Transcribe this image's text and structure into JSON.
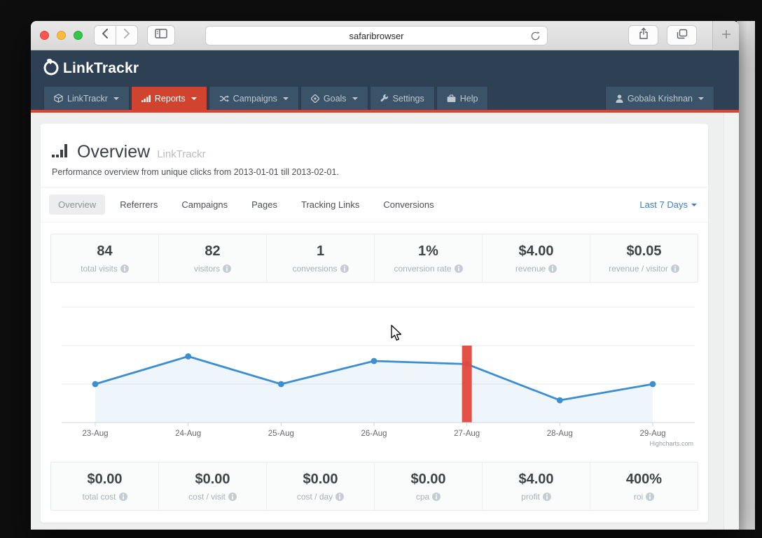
{
  "browser": {
    "url_text": "safaribrowser",
    "traffic_lights": [
      "close",
      "minimize",
      "zoom"
    ]
  },
  "brand": {
    "logo_text": "LinkTrackr"
  },
  "nav": {
    "items": [
      {
        "label": "LinkTrackr",
        "icon": "cube",
        "caret": true,
        "active": false
      },
      {
        "label": "Reports",
        "icon": "bar-chart",
        "caret": true,
        "active": true
      },
      {
        "label": "Campaigns",
        "icon": "shuffle",
        "caret": true,
        "active": false
      },
      {
        "label": "Goals",
        "icon": "goals",
        "caret": true,
        "active": false
      },
      {
        "label": "Settings",
        "icon": "wrench",
        "caret": false,
        "active": false
      },
      {
        "label": "Help",
        "icon": "briefcase",
        "caret": false,
        "active": false
      }
    ],
    "user": {
      "label": "Gobala Krishnan",
      "icon": "person",
      "caret": true
    }
  },
  "page": {
    "title": "Overview",
    "title_suffix": "LinkTrackr",
    "subtitle": "Performance overview from unique clicks from 2013-01-01 till 2013-02-01.",
    "tabs": [
      "Overview",
      "Referrers",
      "Campaigns",
      "Pages",
      "Tracking Links",
      "Conversions"
    ],
    "active_tab": "Overview",
    "date_range": "Last 7 Days"
  },
  "stats_top": [
    {
      "value": "84",
      "label": "total visits"
    },
    {
      "value": "82",
      "label": "visitors"
    },
    {
      "value": "1",
      "label": "conversions"
    },
    {
      "value": "1%",
      "label": "conversion rate"
    },
    {
      "value": "$4.00",
      "label": "revenue"
    },
    {
      "value": "$0.05",
      "label": "revenue / visitor"
    }
  ],
  "stats_bottom": [
    {
      "value": "$0.00",
      "label": "total cost"
    },
    {
      "value": "$0.00",
      "label": "cost / visit"
    },
    {
      "value": "$0.00",
      "label": "cost / day"
    },
    {
      "value": "$0.00",
      "label": "cpa"
    },
    {
      "value": "$4.00",
      "label": "profit"
    },
    {
      "value": "400%",
      "label": "roi"
    }
  ],
  "chart_data": {
    "type": "line",
    "subtype": "area line with one column overlay",
    "x": [
      "23-Aug",
      "24-Aug",
      "25-Aug",
      "26-Aug",
      "27-Aug",
      "28-Aug",
      "29-Aug"
    ],
    "series": [
      {
        "name": "visits",
        "type": "area-line",
        "color": "#3d8ed0",
        "fill": "rgba(61,142,208,0.09)",
        "values": [
          5,
          8.6,
          5,
          8,
          7.6,
          2.9,
          5
        ]
      },
      {
        "name": "conversions",
        "type": "column",
        "color": "#e2483c",
        "values": [
          0,
          0,
          0,
          0,
          10,
          0,
          0
        ]
      }
    ],
    "ylim": [
      0,
      16.5
    ],
    "gridline_values": [
      0,
      5,
      10,
      15
    ],
    "yaxis_labels": "none",
    "legend_position": "none",
    "grid": true,
    "credit": "Highcharts.com"
  },
  "colors": {
    "header_bg": "#2e4154",
    "nav_item_bg": "#3b5368",
    "active_nav_bg": "#d0432f",
    "accent_red_line": "#dd4230",
    "link_blue": "#3f80c2",
    "chart_line": "#3d8ed0",
    "chart_column": "#e2483c",
    "page_bg": "#eef0f0"
  }
}
